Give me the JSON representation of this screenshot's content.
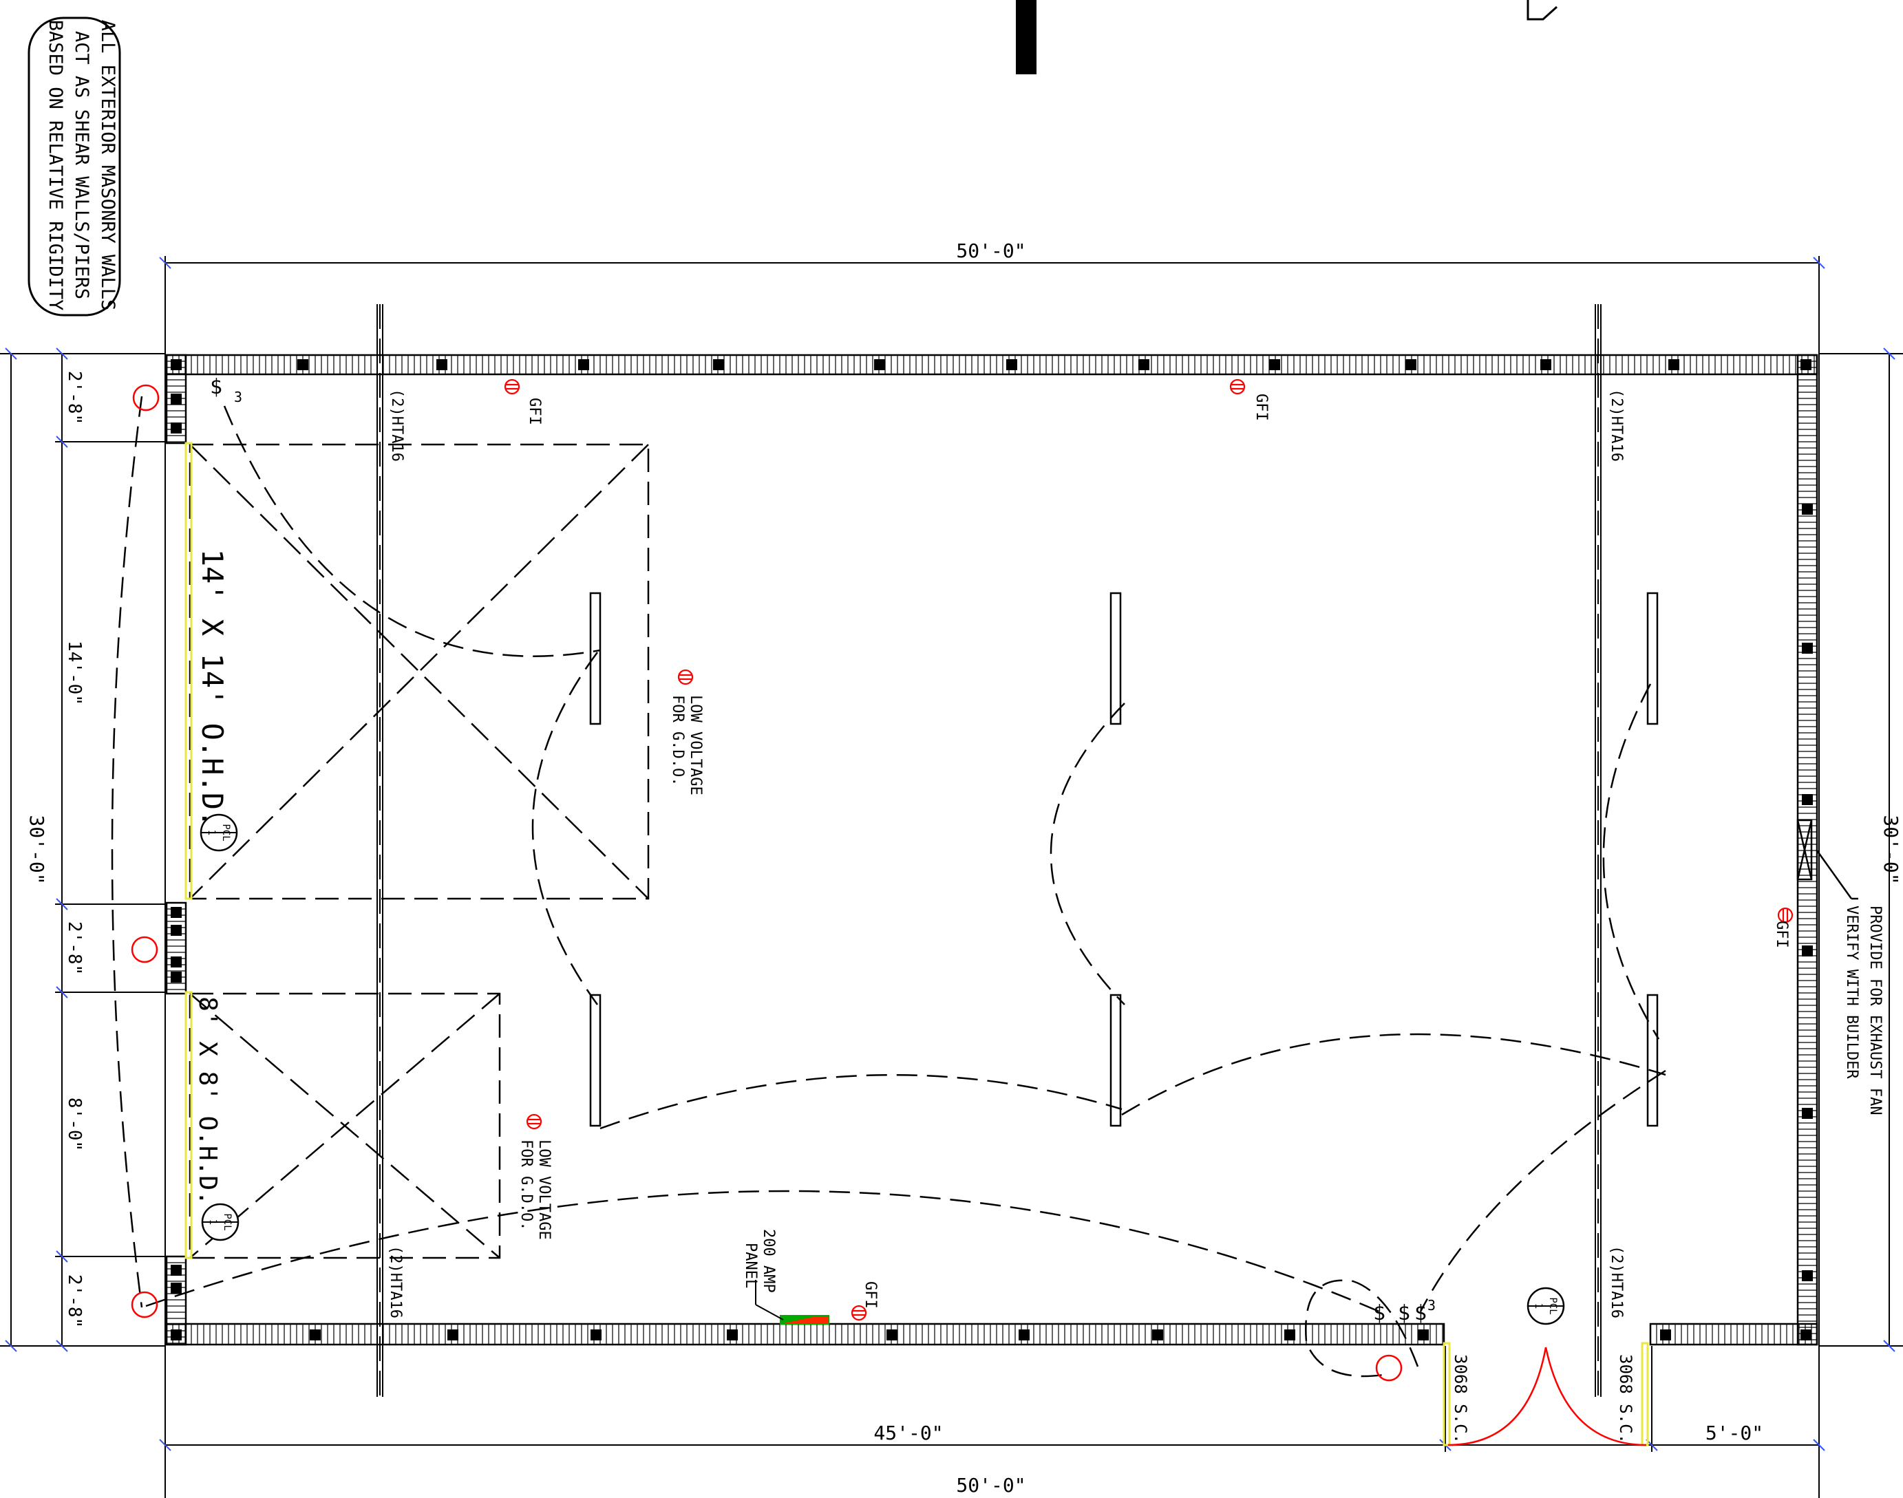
{
  "note": {
    "lines": [
      "ALL EXTERIOR MASONRY WALLS",
      "ACT AS SHEAR WALLS/PIERS",
      "BASED ON RELATIVE RIGIDITY"
    ]
  },
  "dimensions": {
    "top_overall": "50'-0\"",
    "bottom_overall": "50'-0\"",
    "bottom_left": "45'-0\"",
    "bottom_right": "5'-0\"",
    "left_overall": "30'-0\"",
    "right_overall": "30'-0\"",
    "left_segments": [
      "2'-8\"",
      "14'-0\"",
      "2'-8\"",
      "8'-0\"",
      "2'-8\""
    ]
  },
  "doors": {
    "large": "14' X 14' O.H.D.",
    "small": "8' X 8' O.H.D.",
    "pedestrian_left": "3068 S.C.",
    "pedestrian_right": "3068 S.C."
  },
  "callouts": {
    "pcl": [
      "PCL",
      "1"
    ],
    "hta": "(2)HTA16",
    "gfi": "GFI",
    "low_voltage": [
      "LOW VOLTAGE",
      "FOR G.D.O."
    ],
    "panel": [
      "200 AMP",
      "PANEL"
    ],
    "exhaust": [
      "PROVIDE FOR EXHAUST FAN",
      "VERIFY WITH BUILDER"
    ],
    "switch_symbol": "$",
    "three_way": "3"
  },
  "colors": {
    "line": "#000000",
    "electrical": "#ff0000",
    "door_highlight": "#ffff66",
    "panel_green": "#00aa00",
    "dim_tick": "#3355ff"
  }
}
